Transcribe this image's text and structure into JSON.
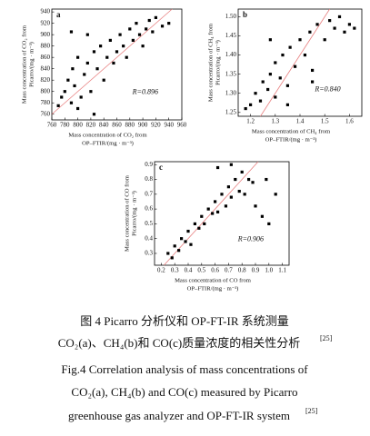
{
  "chart_data": [
    {
      "type": "scatter",
      "label": "a",
      "annotation": "R=0.896",
      "x_label": [
        "Mass concentration of CO₂ from",
        "OP–FTIR/(mg · m⁻³)"
      ],
      "y_label": [
        "Mass concentration of CO₂ from",
        "Picarro/(mg · m⁻³)"
      ],
      "color": "#000000",
      "line_color": "#e88080",
      "xlim": [
        760,
        960
      ],
      "ylim": [
        750,
        945
      ],
      "xticks": [
        760,
        780,
        800,
        820,
        840,
        860,
        880,
        900,
        920,
        940,
        960
      ],
      "yticks": [
        760,
        780,
        800,
        820,
        840,
        860,
        880,
        900,
        920,
        940
      ],
      "x": [
        770,
        775,
        780,
        785,
        790,
        792,
        795,
        800,
        805,
        810,
        815,
        820,
        825,
        830,
        835,
        840,
        845,
        850,
        855,
        860,
        865,
        870,
        875,
        880,
        885,
        890,
        895,
        900,
        905,
        910,
        915,
        920,
        930,
        940,
        800,
        790,
        815,
        825
      ],
      "values": [
        775,
        790,
        800,
        820,
        780,
        840,
        810,
        860,
        790,
        830,
        850,
        800,
        870,
        840,
        880,
        820,
        860,
        890,
        850,
        870,
        900,
        880,
        860,
        910,
        890,
        920,
        900,
        880,
        910,
        925,
        905,
        930,
        915,
        920,
        770,
        905,
        900,
        760
      ]
    },
    {
      "type": "scatter",
      "label": "b",
      "annotation": "R=0.840",
      "x_label": [
        "Mass concentration of CH₄ from",
        "OP–FTIR/(mg · m⁻³)"
      ],
      "y_label": [
        "Mass concentration of CH₄ from",
        "Picarro/(mg · m⁻³)"
      ],
      "color": "#000000",
      "line_color": "#e88080",
      "xlim": [
        1.15,
        1.65
      ],
      "ylim": [
        1.24,
        1.52
      ],
      "xticks": [
        1.2,
        1.3,
        1.4,
        1.5,
        1.6
      ],
      "yticks": [
        1.25,
        {
          "value": 1.3,
          "label": "1.30"
        },
        1.35,
        {
          "value": 1.4,
          "label": "1.40"
        },
        1.45,
        {
          "value": 1.5,
          "label": "1.50"
        }
      ],
      "x": [
        1.18,
        1.2,
        1.22,
        1.24,
        1.25,
        1.27,
        1.28,
        1.3,
        1.3,
        1.32,
        1.33,
        1.35,
        1.36,
        1.38,
        1.4,
        1.42,
        1.44,
        1.45,
        1.47,
        1.5,
        1.52,
        1.54,
        1.56,
        1.58,
        1.6,
        1.62,
        1.35,
        1.45,
        1.28
      ],
      "values": [
        1.26,
        1.27,
        1.3,
        1.28,
        1.33,
        1.31,
        1.35,
        1.29,
        1.38,
        1.34,
        1.4,
        1.32,
        1.42,
        1.37,
        1.44,
        1.4,
        1.46,
        1.36,
        1.48,
        1.44,
        1.49,
        1.47,
        1.5,
        1.46,
        1.48,
        1.47,
        1.27,
        1.33,
        1.44
      ]
    },
    {
      "type": "scatter",
      "label": "c",
      "annotation": "R=0.906",
      "x_label": [
        "Mass concentration of CO from",
        "OP–FTIR/(mg · m⁻³)"
      ],
      "y_label": [
        "Mass concentration of CO from",
        "Picarro/(mg · m⁻³)"
      ],
      "color": "#000000",
      "line_color": "#e88080",
      "xlim": [
        0.15,
        1.15
      ],
      "ylim": [
        0.22,
        0.92
      ],
      "xticks": [
        0.2,
        0.3,
        0.4,
        0.5,
        0.6,
        0.7,
        0.8,
        0.9,
        {
          "value": 1.0,
          "label": "1.0"
        },
        1.1
      ],
      "yticks": [
        0.3,
        0.4,
        0.5,
        0.6,
        0.7,
        0.8,
        0.9
      ],
      "x": [
        0.25,
        0.28,
        0.3,
        0.33,
        0.35,
        0.38,
        0.4,
        0.42,
        0.45,
        0.48,
        0.5,
        0.52,
        0.55,
        0.58,
        0.6,
        0.62,
        0.65,
        0.68,
        0.7,
        0.72,
        0.75,
        0.78,
        0.8,
        0.82,
        0.85,
        0.88,
        0.9,
        0.95,
        1.0,
        0.62,
        0.72,
        0.98,
        1.05
      ],
      "values": [
        0.3,
        0.27,
        0.35,
        0.32,
        0.4,
        0.38,
        0.45,
        0.36,
        0.5,
        0.47,
        0.55,
        0.5,
        0.6,
        0.57,
        0.65,
        0.58,
        0.7,
        0.62,
        0.75,
        0.68,
        0.8,
        0.72,
        0.85,
        0.7,
        0.8,
        0.78,
        0.62,
        0.55,
        0.5,
        0.88,
        0.9,
        0.8,
        0.7
      ]
    }
  ],
  "caption": {
    "zh": [
      "图 4   Picarro 分析仪和 OP-FT-IR 系统测量",
      "CO₂(a)、CH₄(b)和 CO(c)质量浓度的相关性分析"
    ],
    "zh_ref": "[25]",
    "en": [
      "Fig.4   Correlation analysis of mass concentrations of",
      "CO₂(a), CH₄(b) and CO(c) measured by Picarro",
      "greenhouse gas analyzer and OP-FT-IR system"
    ],
    "en_ref": "[25]"
  }
}
